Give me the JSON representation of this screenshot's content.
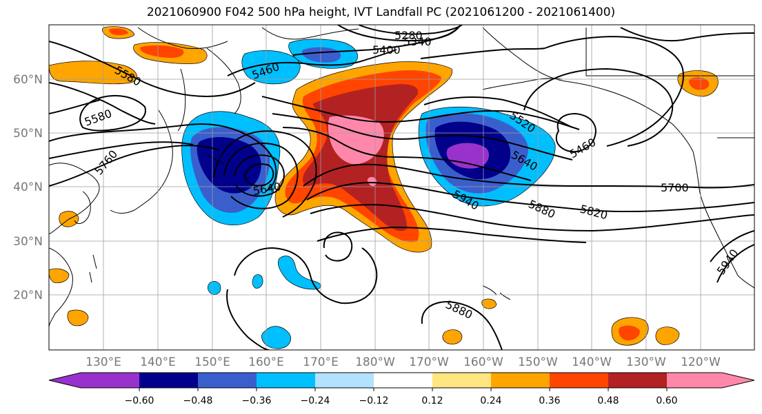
{
  "title": "2021060900 F042 500 hPa height, IVT Landfall PC (2021061200 - 2021061400)",
  "lat_labels": [
    "60°N",
    "50°N",
    "40°N",
    "30°N",
    "20°N"
  ],
  "lon_labels": [
    "130°E",
    "140°E",
    "150°E",
    "160°E",
    "170°E",
    "180°W",
    "170°W",
    "160°W",
    "150°W",
    "140°W",
    "130°W",
    "120°W"
  ],
  "contour_labels": {
    "c5280": "5280",
    "c5340": "5340",
    "c5400": "5400",
    "c5580a": "5580",
    "c5580b": "5580",
    "c5460a": "5460",
    "c5460b": "5460",
    "c5520": "5520",
    "c5640a": "5640",
    "c5640b": "5640",
    "c5760": "5760",
    "c5700": "5700",
    "c5820": "5820",
    "c5880a": "5880",
    "c5880b": "5880",
    "c5940a": "5940",
    "c5940b": "5940"
  },
  "colorbar": {
    "ticks": [
      "−0.60",
      "−0.48",
      "−0.36",
      "−0.24",
      "−0.12",
      "0.12",
      "0.24",
      "0.36",
      "0.48",
      "0.60"
    ],
    "colors": [
      "#9932cc",
      "#00008b",
      "#3a5fcd",
      "#00bfff",
      "#b2e2ff",
      "#ffffff",
      "#ffe680",
      "#ffa500",
      "#ff4500",
      "#b22222",
      "#ff88aa"
    ]
  }
}
